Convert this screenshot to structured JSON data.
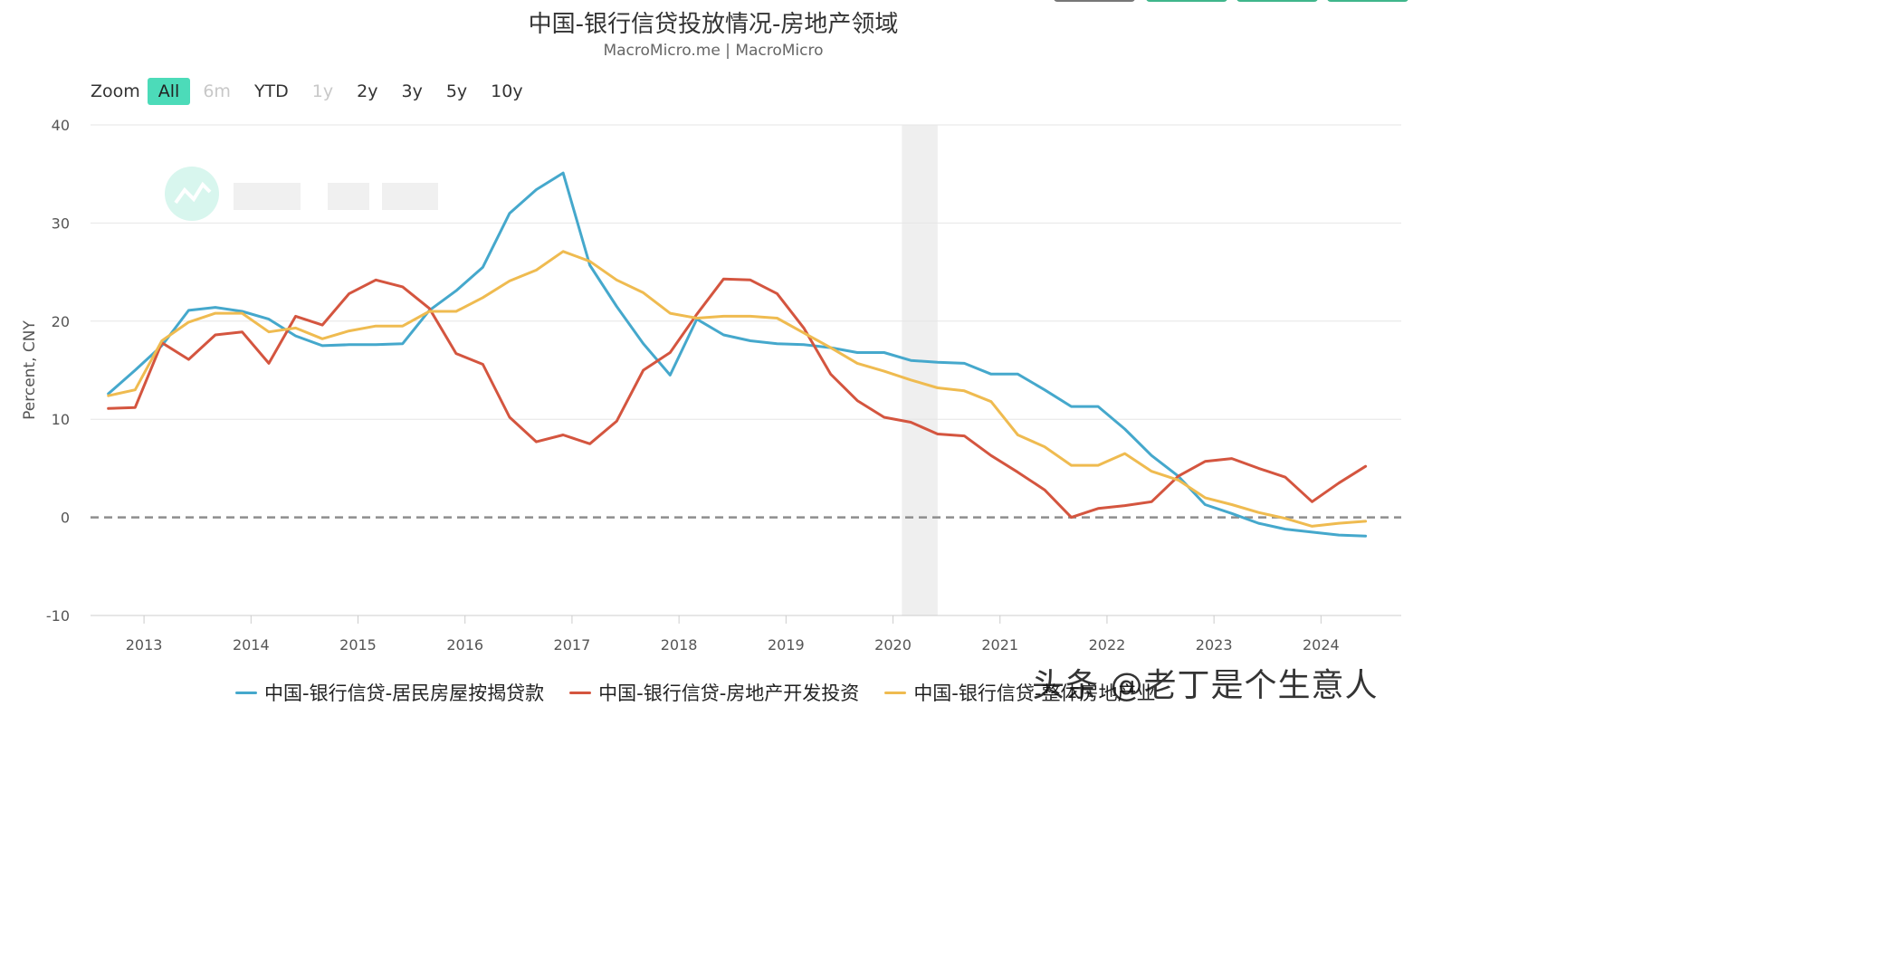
{
  "title": "中国-银行信贷投放情况-房地产领域",
  "subtitle": "MacroMicro.me | MacroMicro",
  "zoom": {
    "label": "Zoom",
    "buttons": [
      "All",
      "6m",
      "YTD",
      "1y",
      "2y",
      "3y",
      "5y",
      "10y"
    ],
    "active": "All",
    "disabled": [
      "6m",
      "1y"
    ]
  },
  "watermark": "头条 @老丁是个生意人",
  "colors": {
    "series1": "#45a8cc",
    "series2": "#d4553f",
    "series3": "#efbb50",
    "recession": "#efefef",
    "accent": "#4cdbb9"
  },
  "chart_data": {
    "type": "line",
    "title": "中国-银行信贷投放情况-房地产领域",
    "subtitle": "MacroMicro.me | MacroMicro",
    "ylabel": "Percent, CNY",
    "ylim": [
      -10,
      40
    ],
    "yticks": [
      40,
      30,
      20,
      10,
      0,
      -10
    ],
    "xticks": [
      "2013",
      "2014",
      "2015",
      "2016",
      "2017",
      "2018",
      "2019",
      "2020",
      "2021",
      "2022",
      "2023",
      "2024"
    ],
    "xlim": [
      "2012-07",
      "2024-10"
    ],
    "grid": true,
    "zero_line": "dashed",
    "shaded_band": [
      "2020-02",
      "2020-06"
    ],
    "legend_position": "bottom",
    "x": [
      "2012-09",
      "2012-12",
      "2013-03",
      "2013-06",
      "2013-09",
      "2013-12",
      "2014-03",
      "2014-06",
      "2014-09",
      "2014-12",
      "2015-03",
      "2015-06",
      "2015-09",
      "2015-12",
      "2016-03",
      "2016-06",
      "2016-09",
      "2016-12",
      "2017-03",
      "2017-06",
      "2017-09",
      "2017-12",
      "2018-03",
      "2018-06",
      "2018-09",
      "2018-12",
      "2019-03",
      "2019-06",
      "2019-09",
      "2019-12",
      "2020-03",
      "2020-06",
      "2020-09",
      "2020-12",
      "2021-03",
      "2021-06",
      "2021-09",
      "2021-12",
      "2022-03",
      "2022-06",
      "2022-09",
      "2022-12",
      "2023-03",
      "2023-06",
      "2023-09",
      "2023-12",
      "2024-03",
      "2024-06"
    ],
    "series": [
      {
        "name": "中国-银行信贷-居民房屋按揭贷款",
        "values": [
          12.6,
          15.0,
          17.5,
          21.1,
          21.4,
          21.0,
          20.2,
          18.5,
          17.5,
          17.6,
          17.6,
          17.7,
          21.1,
          23.1,
          25.5,
          31.0,
          33.4,
          35.1,
          25.7,
          21.5,
          17.7,
          14.5,
          20.2,
          18.6,
          18.0,
          17.7,
          17.6,
          17.3,
          16.8,
          16.8,
          16.0,
          15.8,
          15.7,
          14.6,
          14.6,
          13.0,
          11.3,
          11.3,
          9.0,
          6.3,
          4.2,
          1.3,
          0.4,
          -0.6,
          -1.2,
          -1.5,
          -1.8,
          -1.9
        ]
      },
      {
        "name": "中国-银行信贷-房地产开发投资",
        "values": [
          11.1,
          11.2,
          17.8,
          16.1,
          18.6,
          18.9,
          15.7,
          20.5,
          19.6,
          22.8,
          24.2,
          23.5,
          21.3,
          16.7,
          15.6,
          10.2,
          7.7,
          8.4,
          7.5,
          9.8,
          15.0,
          16.8,
          20.7,
          24.3,
          24.2,
          22.8,
          19.3,
          14.6,
          11.9,
          10.2,
          9.7,
          8.5,
          8.3,
          6.3,
          4.6,
          2.8,
          0.0,
          0.9,
          1.2,
          1.6,
          4.2,
          5.7,
          6.0,
          5.0,
          4.1,
          1.6,
          3.5,
          5.2
        ]
      },
      {
        "name": "中国-银行信贷-整体房地产业",
        "values": [
          12.4,
          13.0,
          18.0,
          19.9,
          20.8,
          20.8,
          18.9,
          19.3,
          18.2,
          19.0,
          19.5,
          19.5,
          21.0,
          21.0,
          22.4,
          24.1,
          25.2,
          27.1,
          26.1,
          24.2,
          22.9,
          20.8,
          20.3,
          20.5,
          20.5,
          20.3,
          18.8,
          17.3,
          15.7,
          14.9,
          14.0,
          13.2,
          12.9,
          11.8,
          8.4,
          7.2,
          5.3,
          5.3,
          6.5,
          4.7,
          3.8,
          2.0,
          1.3,
          0.5,
          -0.1,
          -0.9,
          -0.6,
          -0.4
        ]
      }
    ]
  }
}
